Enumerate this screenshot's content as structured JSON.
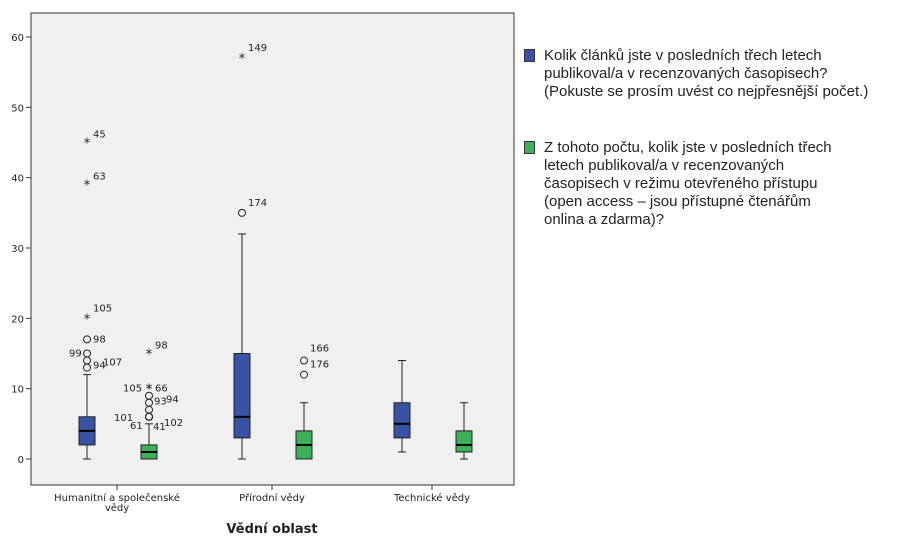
{
  "chart_data": {
    "type": "boxplot",
    "xlabel": "Vědní oblast",
    "ylabel": "",
    "ylim": [
      0,
      60
    ],
    "yticks": [
      0,
      10,
      20,
      30,
      40,
      50,
      60
    ],
    "categories": [
      "Humanitní a společenské vědy",
      "Přírodní vědy",
      "Technické vědy"
    ],
    "category_labels": [
      [
        "Humanitní a společenské",
        "vědy"
      ],
      [
        "Přírodní vědy"
      ],
      [
        "Technické vědy"
      ]
    ],
    "grid": false,
    "legend_position": "right",
    "series": [
      {
        "name": "Kolik článků jste v posledních třech letech publikoval/a v recenzovaných časopisech? (Pokuste se prosím uvést co nejpřesnější počet.)",
        "legend_lines": [
          "Kolik článků jste v posledních třech letech",
          "publikoval/a v recenzovaných časopisech?",
          "(Pokuste se prosím uvést co nejpřesnější počet.)"
        ],
        "color": "#3a52a4",
        "boxes": [
          {
            "min": 0,
            "q1": 2,
            "median": 4,
            "q3": 6,
            "max": 12,
            "outliers": [
              {
                "value": 45,
                "label": "45",
                "marker": "star"
              },
              {
                "value": 39,
                "label": "63",
                "marker": "star"
              },
              {
                "value": 20,
                "label": "105",
                "marker": "star"
              },
              {
                "value": 17,
                "label": "98",
                "marker": "circle"
              },
              {
                "value": 15,
                "label": "99",
                "marker": "circle"
              },
              {
                "value": 14,
                "label": "107",
                "marker": "circle"
              },
              {
                "value": 13,
                "label": "94",
                "marker": "circle"
              }
            ]
          },
          {
            "min": 0,
            "q1": 3,
            "median": 6,
            "q3": 15,
            "max": 32,
            "outliers": [
              {
                "value": 57,
                "label": "149",
                "marker": "star"
              },
              {
                "value": 35,
                "label": "174",
                "marker": "circle"
              }
            ]
          },
          {
            "min": 1,
            "q1": 3,
            "median": 5,
            "q3": 8,
            "max": 14,
            "outliers": []
          }
        ]
      },
      {
        "name": "Z tohoto počtu, kolik jste v posledních třech letech publikoval/a v recenzovaných časopisech v režimu otevřeného přístupu (open access – jsou přístupné čtenářům onlina a zdarma)?",
        "legend_lines": [
          "Z tohoto počtu, kolik jste v posledních třech",
          "letech publikoval/a v recenzovaných",
          "časopisech v režimu otevřeného přístupu",
          "(open access – jsou přístupné čtenářům",
          "onlina a zdarma)?"
        ],
        "color": "#3db158",
        "boxes": [
          {
            "min": 0,
            "q1": 0,
            "median": 1,
            "q3": 2,
            "max": 5,
            "outliers": [
              {
                "value": 15,
                "label": "98",
                "marker": "star"
              },
              {
                "value": 10,
                "label": "105",
                "marker": "star"
              },
              {
                "value": 10,
                "label": "66",
                "marker": "star"
              },
              {
                "value": 9,
                "label": "94",
                "marker": "circle"
              },
              {
                "value": 8,
                "label": "93",
                "marker": "circle"
              },
              {
                "value": 7,
                "label": "101",
                "marker": "circle"
              },
              {
                "value": 6,
                "label": "102",
                "marker": "circle"
              },
              {
                "value": 6,
                "label": "61",
                "marker": "circle"
              },
              {
                "value": 6,
                "label": "41",
                "marker": "circle"
              }
            ]
          },
          {
            "min": 0,
            "q1": 0,
            "median": 2,
            "q3": 4,
            "max": 8,
            "outliers": [
              {
                "value": 14,
                "label": "166",
                "marker": "circle"
              },
              {
                "value": 12,
                "label": "176",
                "marker": "circle"
              }
            ]
          },
          {
            "min": 0,
            "q1": 1,
            "median": 2,
            "q3": 4,
            "max": 8,
            "outliers": []
          }
        ]
      }
    ]
  }
}
